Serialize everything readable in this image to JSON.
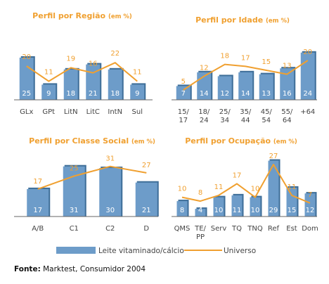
{
  "chart_data": [
    {
      "type": "bar",
      "title": "Perfil por Região",
      "title_unit": "(em %)",
      "categories": [
        "GLx",
        "GPt",
        "LitN",
        "LitC",
        "IntN",
        "Sul"
      ],
      "series": [
        {
          "name": "Leite vitaminado/cálcio",
          "type": "bar",
          "values": [
            25,
            9,
            18,
            21,
            18,
            9
          ]
        },
        {
          "name": "Universo",
          "type": "line",
          "values": [
            20,
            11,
            19,
            16,
            22,
            11
          ]
        }
      ],
      "ylim": [
        0,
        30
      ]
    },
    {
      "type": "bar",
      "title": "Perfil por Idade",
      "title_unit": "(em %)",
      "categories": [
        [
          "15/",
          "17"
        ],
        [
          "18/",
          "24"
        ],
        [
          "25/",
          "34"
        ],
        [
          "35/",
          "44"
        ],
        [
          "45/",
          "54"
        ],
        [
          "55/",
          "64"
        ],
        [
          "+64"
        ]
      ],
      "series": [
        {
          "name": "Leite vitaminado/cálcio",
          "type": "bar",
          "values": [
            7,
            14,
            12,
            14,
            13,
            16,
            24
          ]
        },
        {
          "name": "Universo",
          "type": "line",
          "values": [
            5,
            12,
            18,
            17,
            15,
            13,
            20
          ]
        }
      ],
      "ylim": [
        0,
        30
      ]
    },
    {
      "type": "bar",
      "title": "Perfil por Classe Social",
      "title_unit": "(em %)",
      "categories": [
        "A/B",
        "C1",
        "C2",
        "D"
      ],
      "series": [
        {
          "name": "Leite vitaminado/cálcio",
          "type": "bar",
          "values": [
            17,
            31,
            30,
            21
          ]
        },
        {
          "name": "Universo",
          "type": "line",
          "values": [
            17,
            25,
            31,
            27
          ]
        }
      ],
      "ylim": [
        0,
        40
      ]
    },
    {
      "type": "bar",
      "title": "Perfil por Ocupação",
      "title_unit": "(em %)",
      "categories": [
        "QMS",
        [
          "TE/",
          "PP"
        ],
        "Serv",
        "TQ",
        "TNQ",
        "Ref",
        "Est",
        "Dom"
      ],
      "series": [
        {
          "name": "Leite vitaminado/cálcio",
          "type": "bar",
          "values": [
            8,
            4,
            10,
            11,
            10,
            29,
            15,
            12
          ]
        },
        {
          "name": "Universo",
          "type": "line",
          "values": [
            10,
            8,
            11,
            17,
            10,
            27,
            11,
            7
          ]
        }
      ],
      "ylim": [
        0,
        35
      ]
    }
  ],
  "legend": {
    "items": [
      {
        "label": "Leite vitaminado/cálcio",
        "kind": "bar",
        "color": "#6d9cc9"
      },
      {
        "label": "Universo",
        "kind": "line",
        "color": "#f0a030"
      }
    ]
  },
  "source": {
    "label": "Fonte:",
    "text": " Marktest, Consumidor 2004"
  },
  "colors": {
    "bar": "#6d9cc9",
    "line": "#f0a030",
    "title": "#f0a030"
  }
}
